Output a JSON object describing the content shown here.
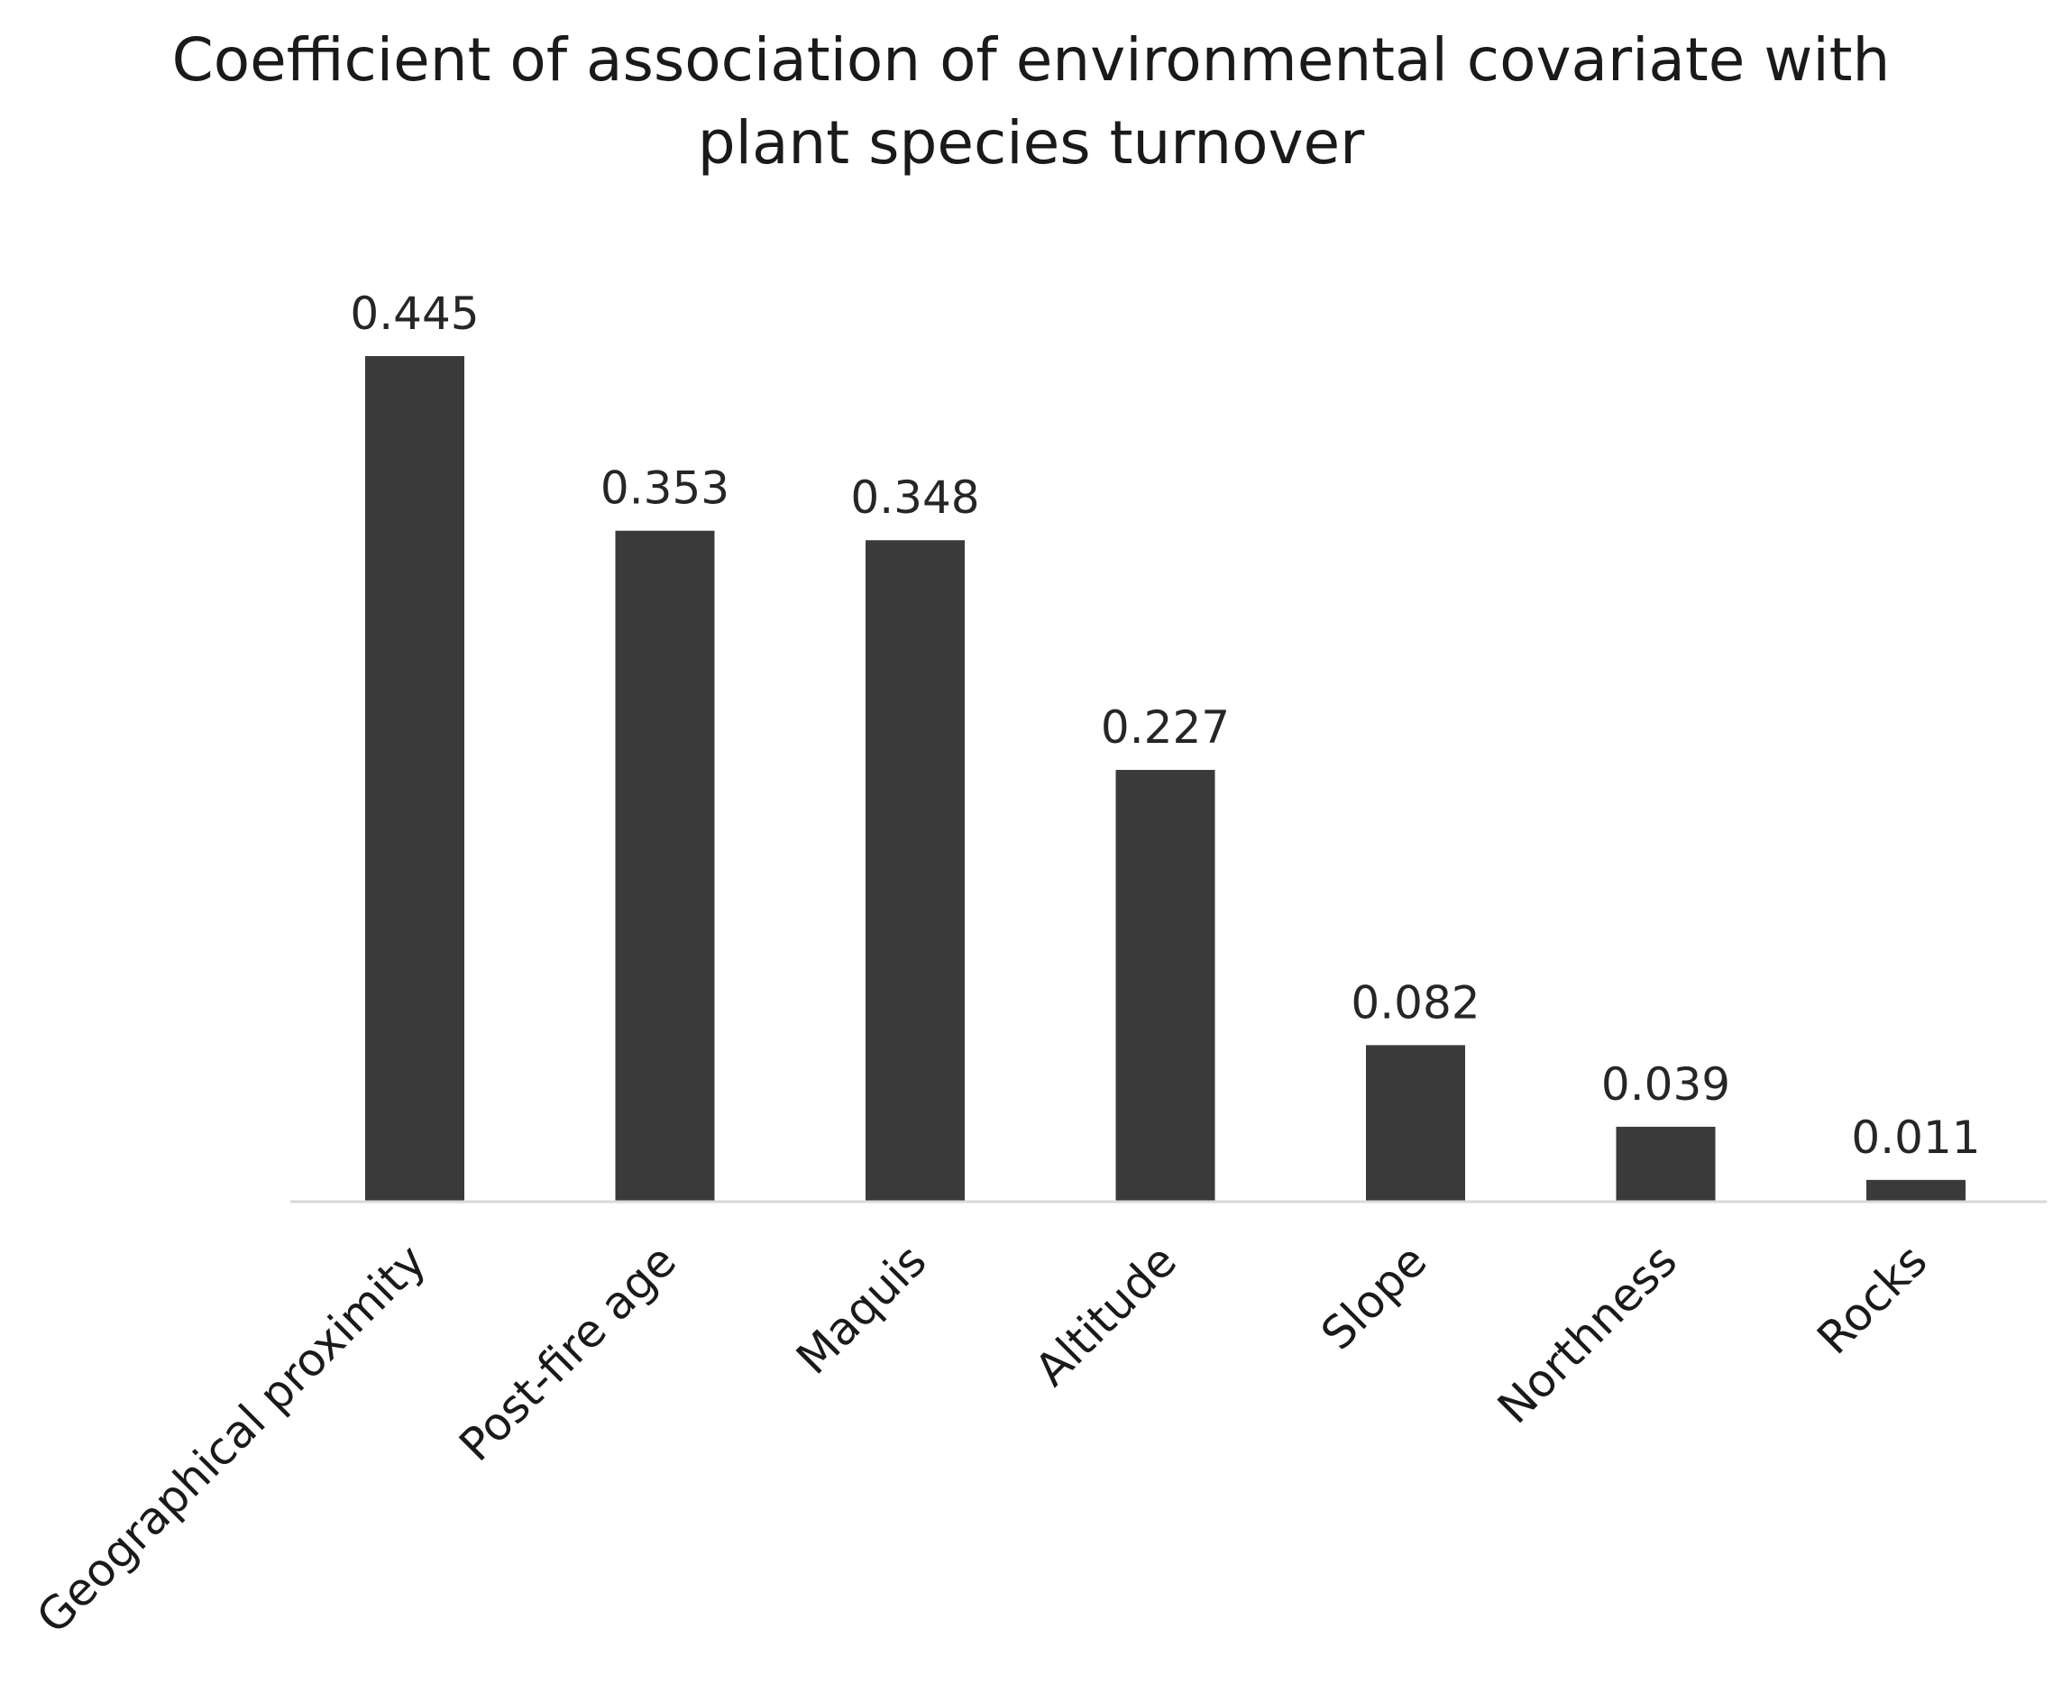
{
  "chart_data": {
    "type": "bar",
    "title_lines": [
      "Coefficient of association of environmental covariate with",
      "plant species turnover"
    ],
    "categories": [
      "Geographical proximity",
      "Post-fire age",
      "Maquis",
      "Altitude",
      "Slope",
      "Northness",
      "Rocks"
    ],
    "values": [
      0.445,
      0.353,
      0.348,
      0.227,
      0.082,
      0.039,
      0.011
    ],
    "data_labels": [
      "0.445",
      "0.353",
      "0.348",
      "0.227",
      "0.082",
      "0.039",
      "0.011"
    ],
    "ylim": [
      0,
      0.445
    ],
    "grid": false,
    "legend": "none",
    "colors": {
      "bar": "#3a3a3a",
      "axis": "#d9d9d9"
    }
  }
}
